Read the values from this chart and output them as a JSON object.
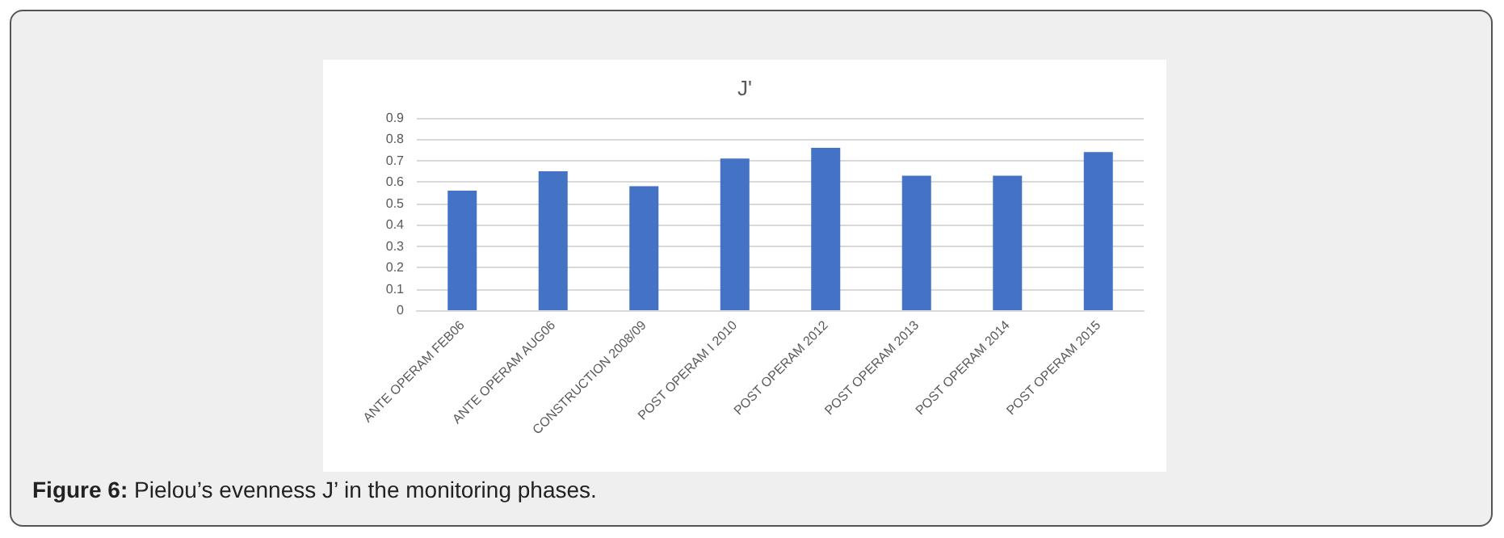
{
  "chart_data": {
    "type": "bar",
    "title": "J'",
    "categories": [
      "ANTE OPERAM FEB06",
      "ANTE OPERAM AUG06",
      "CONSTRUCTION 2008/09",
      "POST OPERAM I 2010",
      "POST OPERAM 2012",
      "POST OPERAM 2013",
      "POST OPERAM 2014",
      "POST OPERAM 2015"
    ],
    "values": [
      0.56,
      0.65,
      0.58,
      0.71,
      0.76,
      0.63,
      0.63,
      0.74
    ],
    "color": "#4472c4",
    "ylim": [
      0,
      0.9
    ],
    "yticks": [
      0,
      0.1,
      0.2,
      0.3,
      0.4,
      0.5,
      0.6,
      0.7,
      0.8,
      0.9
    ],
    "grid": "y",
    "annotations": [
      "Figure 6: Pielou’s evenness J’ in the monitoring phases."
    ]
  }
}
